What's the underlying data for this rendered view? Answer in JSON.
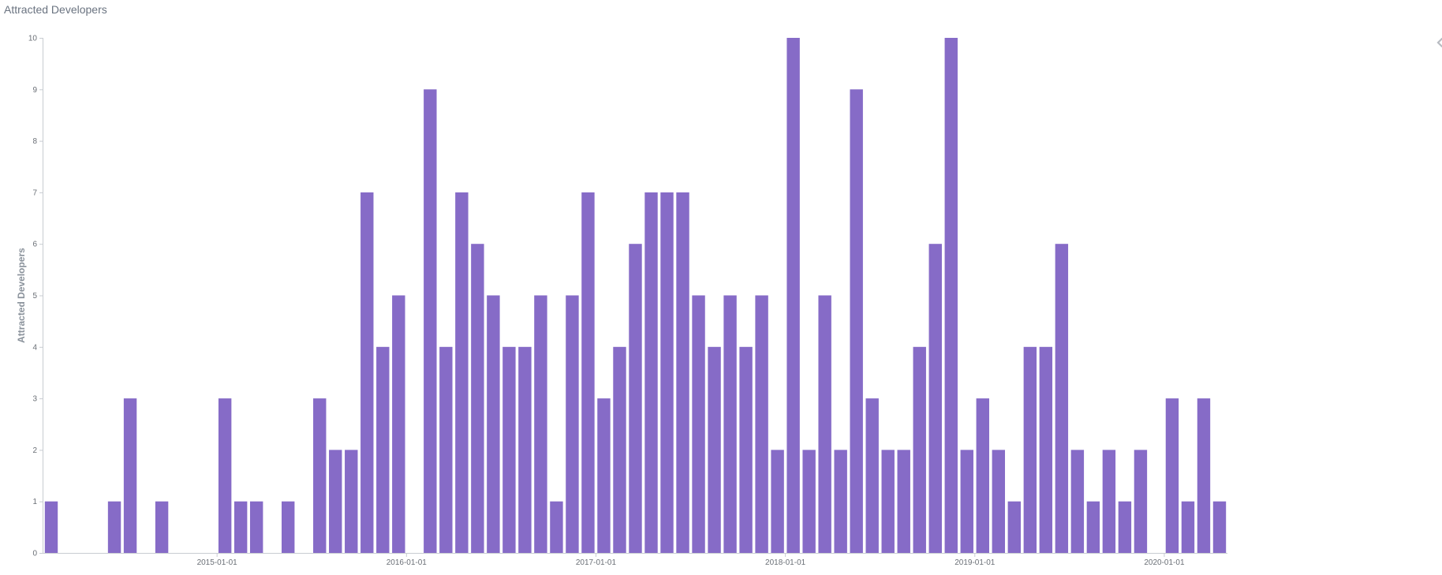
{
  "panel": {
    "title": "Attracted Developers"
  },
  "chart_data": {
    "type": "bar",
    "title": "",
    "ylabel": "Attracted Developers",
    "xlabel": "",
    "x_tick_labels": [
      "2015-01-01",
      "2016-01-01",
      "2017-01-01",
      "2018-01-01",
      "2019-01-01",
      "2020-01-01"
    ],
    "x_tick_dates": [
      "2015-01-01",
      "2016-01-01",
      "2017-01-01",
      "2018-01-01",
      "2019-01-01",
      "2020-01-01"
    ],
    "y_ticks": [
      0,
      1,
      2,
      3,
      4,
      5,
      6,
      7,
      8,
      9,
      10
    ],
    "ylim": [
      0,
      10
    ],
    "xlim": [
      "2014-02-01",
      "2020-05-01"
    ],
    "color": "#866bc7",
    "grid": false,
    "legend": "none",
    "categories": [
      "2014-02",
      "2014-03",
      "2014-04",
      "2014-05",
      "2014-06",
      "2014-07",
      "2014-08",
      "2014-09",
      "2014-10",
      "2014-11",
      "2014-12",
      "2015-01",
      "2015-02",
      "2015-03",
      "2015-04",
      "2015-05",
      "2015-06",
      "2015-07",
      "2015-08",
      "2015-09",
      "2015-10",
      "2015-11",
      "2015-12",
      "2016-01",
      "2016-02",
      "2016-03",
      "2016-04",
      "2016-05",
      "2016-06",
      "2016-07",
      "2016-08",
      "2016-09",
      "2016-10",
      "2016-11",
      "2016-12",
      "2017-01",
      "2017-02",
      "2017-03",
      "2017-04",
      "2017-05",
      "2017-06",
      "2017-07",
      "2017-08",
      "2017-09",
      "2017-10",
      "2017-11",
      "2017-12",
      "2018-01",
      "2018-02",
      "2018-03",
      "2018-04",
      "2018-05",
      "2018-06",
      "2018-07",
      "2018-08",
      "2018-09",
      "2018-10",
      "2018-11",
      "2018-12",
      "2019-01",
      "2019-02",
      "2019-03",
      "2019-04",
      "2019-05",
      "2019-06",
      "2019-07",
      "2019-08",
      "2019-09",
      "2019-10",
      "2019-11",
      "2019-12",
      "2020-01",
      "2020-02",
      "2020-03",
      "2020-04"
    ],
    "values": [
      1,
      0,
      0,
      0,
      1,
      3,
      0,
      1,
      0,
      0,
      0,
      3,
      1,
      1,
      0,
      1,
      0,
      3,
      2,
      2,
      7,
      4,
      5,
      0,
      9,
      4,
      7,
      6,
      5,
      4,
      4,
      5,
      1,
      5,
      7,
      3,
      4,
      6,
      7,
      7,
      7,
      5,
      4,
      5,
      4,
      5,
      2,
      10,
      2,
      5,
      2,
      9,
      3,
      2,
      2,
      4,
      6,
      10,
      2,
      3,
      2,
      1,
      4,
      4,
      6,
      2,
      1,
      2,
      1,
      2,
      0,
      3,
      1,
      3,
      1
    ]
  }
}
